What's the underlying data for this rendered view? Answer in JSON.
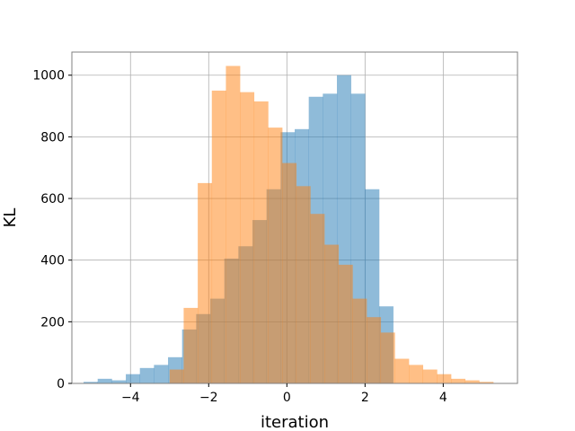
{
  "chart_data": {
    "type": "histogram",
    "title": "",
    "xlabel": "iteration",
    "ylabel": "KL",
    "xlim": [
      -5.5,
      5.9
    ],
    "ylim": [
      0,
      1075
    ],
    "xticks": [
      -4,
      -2,
      0,
      2,
      4
    ],
    "xtick_labels": [
      "−4",
      "−2",
      "0",
      "2",
      "4"
    ],
    "yticks": [
      0,
      200,
      400,
      600,
      800,
      1000
    ],
    "ytick_labels": [
      "0",
      "200",
      "400",
      "600",
      "800",
      "1000"
    ],
    "grid": true,
    "legend": "none",
    "series": [
      {
        "color": "#1f77b4",
        "opacity": 0.5,
        "bins": [
          {
            "x0": -5.2,
            "x1": -4.84,
            "count": 5
          },
          {
            "x0": -4.84,
            "x1": -4.48,
            "count": 15
          },
          {
            "x0": -4.48,
            "x1": -4.12,
            "count": 10
          },
          {
            "x0": -4.12,
            "x1": -3.76,
            "count": 30
          },
          {
            "x0": -3.76,
            "x1": -3.4,
            "count": 50
          },
          {
            "x0": -3.4,
            "x1": -3.04,
            "count": 60
          },
          {
            "x0": -3.04,
            "x1": -2.68,
            "count": 85
          },
          {
            "x0": -2.68,
            "x1": -2.32,
            "count": 175
          },
          {
            "x0": -2.32,
            "x1": -1.96,
            "count": 225
          },
          {
            "x0": -1.96,
            "x1": -1.6,
            "count": 275
          },
          {
            "x0": -1.6,
            "x1": -1.24,
            "count": 405
          },
          {
            "x0": -1.24,
            "x1": -0.88,
            "count": 445
          },
          {
            "x0": -0.88,
            "x1": -0.52,
            "count": 530
          },
          {
            "x0": -0.52,
            "x1": -0.16,
            "count": 630
          },
          {
            "x0": -0.16,
            "x1": 0.2,
            "count": 815
          },
          {
            "x0": 0.2,
            "x1": 0.56,
            "count": 825
          },
          {
            "x0": 0.56,
            "x1": 0.92,
            "count": 930
          },
          {
            "x0": 0.92,
            "x1": 1.28,
            "count": 940
          },
          {
            "x0": 1.28,
            "x1": 1.64,
            "count": 1000
          },
          {
            "x0": 1.64,
            "x1": 2.0,
            "count": 940
          },
          {
            "x0": 2.0,
            "x1": 2.36,
            "count": 630
          },
          {
            "x0": 2.36,
            "x1": 2.72,
            "count": 250
          }
        ]
      },
      {
        "color": "#ff7f0e",
        "opacity": 0.5,
        "bins": [
          {
            "x0": -3.0,
            "x1": -2.64,
            "count": 45
          },
          {
            "x0": -2.64,
            "x1": -2.28,
            "count": 245
          },
          {
            "x0": -2.28,
            "x1": -1.92,
            "count": 650
          },
          {
            "x0": -1.92,
            "x1": -1.56,
            "count": 950
          },
          {
            "x0": -1.56,
            "x1": -1.2,
            "count": 1030
          },
          {
            "x0": -1.2,
            "x1": -0.84,
            "count": 945
          },
          {
            "x0": -0.84,
            "x1": -0.48,
            "count": 915
          },
          {
            "x0": -0.48,
            "x1": -0.12,
            "count": 830
          },
          {
            "x0": -0.12,
            "x1": 0.24,
            "count": 715
          },
          {
            "x0": 0.24,
            "x1": 0.6,
            "count": 640
          },
          {
            "x0": 0.6,
            "x1": 0.96,
            "count": 550
          },
          {
            "x0": 0.96,
            "x1": 1.32,
            "count": 450
          },
          {
            "x0": 1.32,
            "x1": 1.68,
            "count": 385
          },
          {
            "x0": 1.68,
            "x1": 2.04,
            "count": 275
          },
          {
            "x0": 2.04,
            "x1": 2.4,
            "count": 215
          },
          {
            "x0": 2.4,
            "x1": 2.76,
            "count": 165
          },
          {
            "x0": 2.76,
            "x1": 3.12,
            "count": 80
          },
          {
            "x0": 3.12,
            "x1": 3.48,
            "count": 60
          },
          {
            "x0": 3.48,
            "x1": 3.84,
            "count": 45
          },
          {
            "x0": 3.84,
            "x1": 4.2,
            "count": 30
          },
          {
            "x0": 4.2,
            "x1": 4.56,
            "count": 15
          },
          {
            "x0": 4.56,
            "x1": 4.92,
            "count": 10
          },
          {
            "x0": 4.92,
            "x1": 5.28,
            "count": 5
          }
        ]
      }
    ]
  }
}
